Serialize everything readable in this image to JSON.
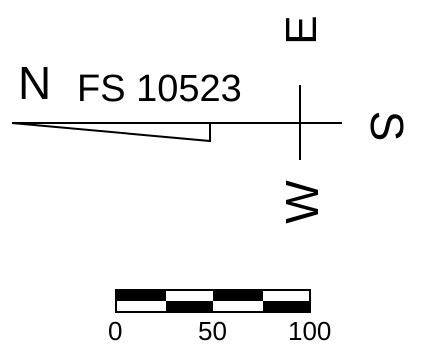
{
  "compass": {
    "north": "N",
    "south": "S",
    "east": "E",
    "west": "W"
  },
  "station_label": "FS 10523",
  "scale_bar": {
    "ticks": [
      "0",
      "50",
      "100"
    ]
  },
  "colors": {
    "ink": "#000000",
    "background": "#ffffff"
  }
}
